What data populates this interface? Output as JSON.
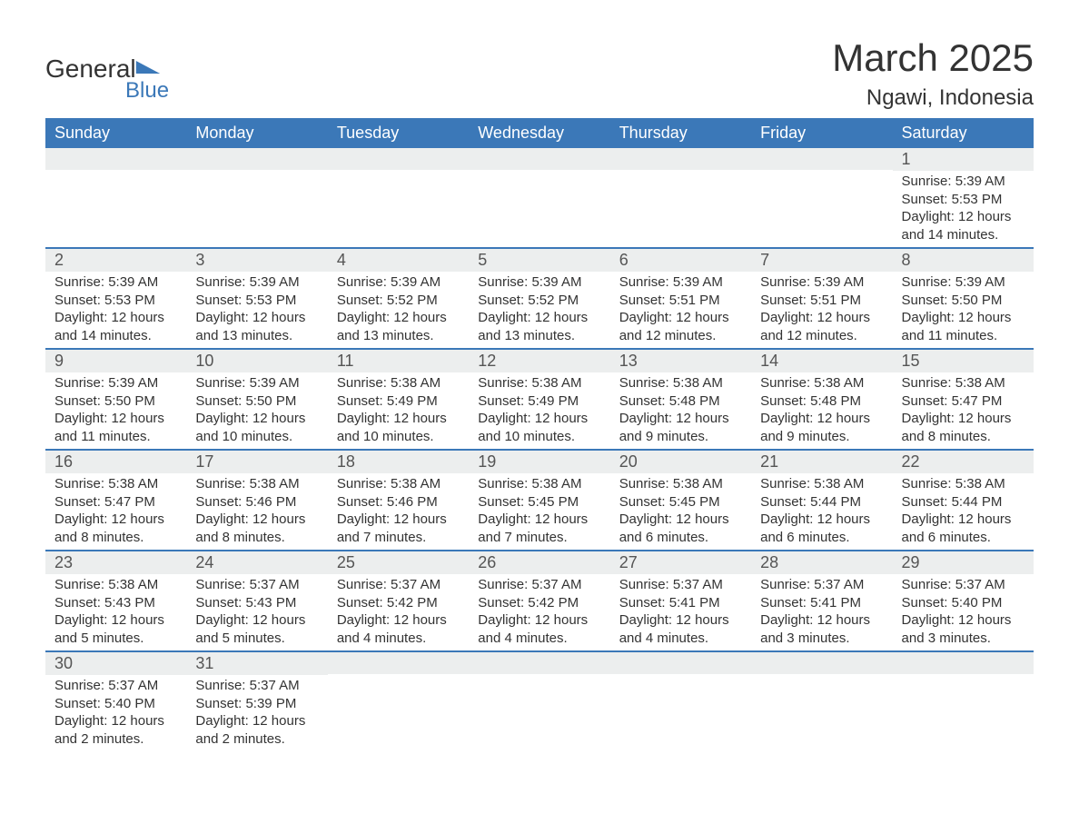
{
  "logo": {
    "line1": "General",
    "line2": "Blue"
  },
  "title": {
    "month": "March 2025",
    "location": "Ngawi, Indonesia"
  },
  "colors": {
    "header_bg": "#3b78b8",
    "header_text": "#ffffff",
    "daynum_bg": "#eceeee",
    "row_border": "#3b78b8",
    "body_text": "#333333",
    "page_bg": "#ffffff",
    "logo_blue": "#3b78b8"
  },
  "typography": {
    "title_fontsize": 42,
    "location_fontsize": 24,
    "header_fontsize": 18,
    "daynum_fontsize": 18,
    "body_fontsize": 15
  },
  "calendar": {
    "day_names": [
      "Sunday",
      "Monday",
      "Tuesday",
      "Wednesday",
      "Thursday",
      "Friday",
      "Saturday"
    ],
    "weeks": [
      [
        null,
        null,
        null,
        null,
        null,
        null,
        {
          "n": "1",
          "sunrise": "5:39 AM",
          "sunset": "5:53 PM",
          "daylight": "12 hours and 14 minutes."
        }
      ],
      [
        {
          "n": "2",
          "sunrise": "5:39 AM",
          "sunset": "5:53 PM",
          "daylight": "12 hours and 14 minutes."
        },
        {
          "n": "3",
          "sunrise": "5:39 AM",
          "sunset": "5:53 PM",
          "daylight": "12 hours and 13 minutes."
        },
        {
          "n": "4",
          "sunrise": "5:39 AM",
          "sunset": "5:52 PM",
          "daylight": "12 hours and 13 minutes."
        },
        {
          "n": "5",
          "sunrise": "5:39 AM",
          "sunset": "5:52 PM",
          "daylight": "12 hours and 13 minutes."
        },
        {
          "n": "6",
          "sunrise": "5:39 AM",
          "sunset": "5:51 PM",
          "daylight": "12 hours and 12 minutes."
        },
        {
          "n": "7",
          "sunrise": "5:39 AM",
          "sunset": "5:51 PM",
          "daylight": "12 hours and 12 minutes."
        },
        {
          "n": "8",
          "sunrise": "5:39 AM",
          "sunset": "5:50 PM",
          "daylight": "12 hours and 11 minutes."
        }
      ],
      [
        {
          "n": "9",
          "sunrise": "5:39 AM",
          "sunset": "5:50 PM",
          "daylight": "12 hours and 11 minutes."
        },
        {
          "n": "10",
          "sunrise": "5:39 AM",
          "sunset": "5:50 PM",
          "daylight": "12 hours and 10 minutes."
        },
        {
          "n": "11",
          "sunrise": "5:38 AM",
          "sunset": "5:49 PM",
          "daylight": "12 hours and 10 minutes."
        },
        {
          "n": "12",
          "sunrise": "5:38 AM",
          "sunset": "5:49 PM",
          "daylight": "12 hours and 10 minutes."
        },
        {
          "n": "13",
          "sunrise": "5:38 AM",
          "sunset": "5:48 PM",
          "daylight": "12 hours and 9 minutes."
        },
        {
          "n": "14",
          "sunrise": "5:38 AM",
          "sunset": "5:48 PM",
          "daylight": "12 hours and 9 minutes."
        },
        {
          "n": "15",
          "sunrise": "5:38 AM",
          "sunset": "5:47 PM",
          "daylight": "12 hours and 8 minutes."
        }
      ],
      [
        {
          "n": "16",
          "sunrise": "5:38 AM",
          "sunset": "5:47 PM",
          "daylight": "12 hours and 8 minutes."
        },
        {
          "n": "17",
          "sunrise": "5:38 AM",
          "sunset": "5:46 PM",
          "daylight": "12 hours and 8 minutes."
        },
        {
          "n": "18",
          "sunrise": "5:38 AM",
          "sunset": "5:46 PM",
          "daylight": "12 hours and 7 minutes."
        },
        {
          "n": "19",
          "sunrise": "5:38 AM",
          "sunset": "5:45 PM",
          "daylight": "12 hours and 7 minutes."
        },
        {
          "n": "20",
          "sunrise": "5:38 AM",
          "sunset": "5:45 PM",
          "daylight": "12 hours and 6 minutes."
        },
        {
          "n": "21",
          "sunrise": "5:38 AM",
          "sunset": "5:44 PM",
          "daylight": "12 hours and 6 minutes."
        },
        {
          "n": "22",
          "sunrise": "5:38 AM",
          "sunset": "5:44 PM",
          "daylight": "12 hours and 6 minutes."
        }
      ],
      [
        {
          "n": "23",
          "sunrise": "5:38 AM",
          "sunset": "5:43 PM",
          "daylight": "12 hours and 5 minutes."
        },
        {
          "n": "24",
          "sunrise": "5:37 AM",
          "sunset": "5:43 PM",
          "daylight": "12 hours and 5 minutes."
        },
        {
          "n": "25",
          "sunrise": "5:37 AM",
          "sunset": "5:42 PM",
          "daylight": "12 hours and 4 minutes."
        },
        {
          "n": "26",
          "sunrise": "5:37 AM",
          "sunset": "5:42 PM",
          "daylight": "12 hours and 4 minutes."
        },
        {
          "n": "27",
          "sunrise": "5:37 AM",
          "sunset": "5:41 PM",
          "daylight": "12 hours and 4 minutes."
        },
        {
          "n": "28",
          "sunrise": "5:37 AM",
          "sunset": "5:41 PM",
          "daylight": "12 hours and 3 minutes."
        },
        {
          "n": "29",
          "sunrise": "5:37 AM",
          "sunset": "5:40 PM",
          "daylight": "12 hours and 3 minutes."
        }
      ],
      [
        {
          "n": "30",
          "sunrise": "5:37 AM",
          "sunset": "5:40 PM",
          "daylight": "12 hours and 2 minutes."
        },
        {
          "n": "31",
          "sunrise": "5:37 AM",
          "sunset": "5:39 PM",
          "daylight": "12 hours and 2 minutes."
        },
        null,
        null,
        null,
        null,
        null
      ]
    ],
    "labels": {
      "sunrise": "Sunrise:",
      "sunset": "Sunset:",
      "daylight": "Daylight:"
    }
  }
}
